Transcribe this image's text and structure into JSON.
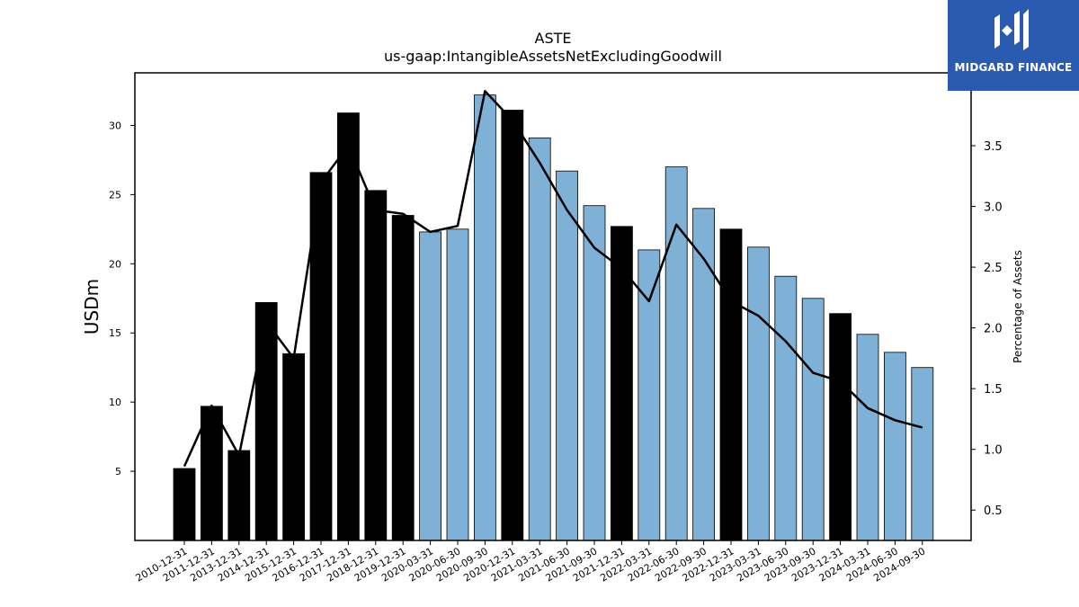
{
  "brand": {
    "name": "MIDGARD FINANCE",
    "icon": "midgard-logo-icon",
    "background": "#2b5bb0"
  },
  "chart_data": {
    "type": "bar",
    "title": "ASTE",
    "subtitle": "us-gaap:IntangibleAssetsNetExcludingGoodwill",
    "ylabel": "USDm",
    "y2label": "Percentage of Assets",
    "ylim": [
      0,
      33.8
    ],
    "y2lim": [
      0.25,
      4.1
    ],
    "yticks": [
      5,
      10,
      15,
      20,
      25,
      30
    ],
    "y2ticks": [
      0.5,
      1.0,
      1.5,
      2.0,
      2.5,
      3.0,
      3.5
    ],
    "colors": {
      "annual": "#000000",
      "quarterly": "#7fb0d5",
      "line": "#000000"
    },
    "categories": [
      "2010-12-31",
      "2011-12-31",
      "2013-12-31",
      "2014-12-31",
      "2015-12-31",
      "2016-12-31",
      "2017-12-31",
      "2018-12-31",
      "2019-12-31",
      "2020-03-31",
      "2020-06-30",
      "2020-09-30",
      "2020-12-31",
      "2021-03-31",
      "2021-06-30",
      "2021-09-30",
      "2021-12-31",
      "2022-03-31",
      "2022-06-30",
      "2022-09-30",
      "2022-12-31",
      "2023-03-31",
      "2023-06-30",
      "2023-09-30",
      "2023-12-31",
      "2024-03-31",
      "2024-06-30",
      "2024-09-30"
    ],
    "series": [
      {
        "values": [
          5.2,
          9.7,
          6.5,
          17.2,
          13.5,
          26.6,
          30.9,
          25.3,
          23.5,
          22.3,
          22.5,
          32.2,
          31.1,
          29.1,
          26.7,
          24.2,
          22.7,
          21.0,
          27.0,
          24.0,
          22.5,
          21.2,
          19.1,
          17.5,
          16.4,
          14.9,
          13.6,
          12.5
        ],
        "kind": [
          "annual",
          "annual",
          "annual",
          "annual",
          "annual",
          "annual",
          "annual",
          "annual",
          "annual",
          "quarterly",
          "quarterly",
          "quarterly",
          "annual",
          "quarterly",
          "quarterly",
          "quarterly",
          "annual",
          "quarterly",
          "quarterly",
          "quarterly",
          "annual",
          "quarterly",
          "quarterly",
          "quarterly",
          "annual",
          "quarterly",
          "quarterly",
          "quarterly"
        ]
      },
      {
        "axis": "right",
        "values": [
          0.86,
          1.36,
          0.95,
          2.05,
          1.75,
          3.2,
          3.5,
          2.97,
          2.94,
          2.79,
          2.84,
          3.95,
          3.71,
          3.36,
          2.97,
          2.66,
          2.49,
          2.22,
          2.85,
          2.57,
          2.22,
          2.1,
          1.89,
          1.63,
          1.56,
          1.34,
          1.24,
          1.18
        ]
      }
    ]
  }
}
